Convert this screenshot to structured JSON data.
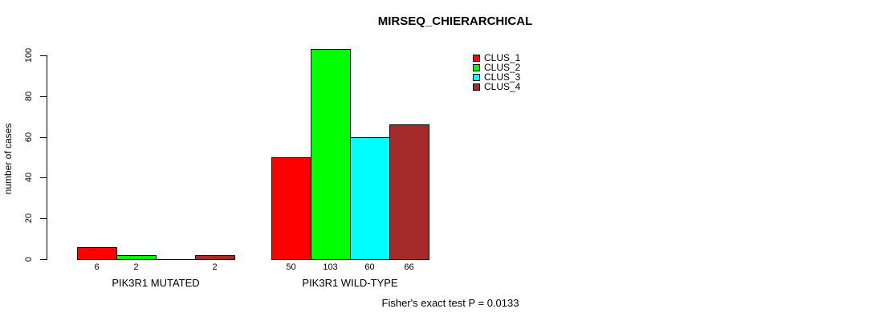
{
  "chart_data": {
    "type": "bar",
    "title": "MIRSEQ_CHIERARCHICAL",
    "xlabel": "",
    "ylabel": "number of cases",
    "categories": [
      "PIK3R1 MUTATED",
      "PIK3R1 WILD-TYPE"
    ],
    "series": [
      {
        "name": "CLUS_1",
        "color": "#FF0000",
        "values": [
          6,
          50
        ]
      },
      {
        "name": "CLUS_2",
        "color": "#00FF00",
        "values": [
          2,
          103
        ]
      },
      {
        "name": "CLUS_3",
        "color": "#00FFFF",
        "values": [
          0,
          60
        ]
      },
      {
        "name": "CLUS_4",
        "color": "#A52A2A",
        "values": [
          2,
          66
        ]
      }
    ],
    "bar_labels": [
      [
        "6",
        "2",
        "",
        "2"
      ],
      [
        "50",
        "103",
        "60",
        "66"
      ]
    ],
    "yticks": [
      0,
      20,
      40,
      60,
      80,
      100
    ],
    "ylim": [
      0,
      100
    ],
    "grid": false,
    "legend_position": "top-right",
    "legend_entries": [
      "CLUS_1",
      "CLUS_2",
      "CLUS_3",
      "CLUS_4"
    ],
    "annotation": "Fisher's exact test P = 0.0133"
  }
}
